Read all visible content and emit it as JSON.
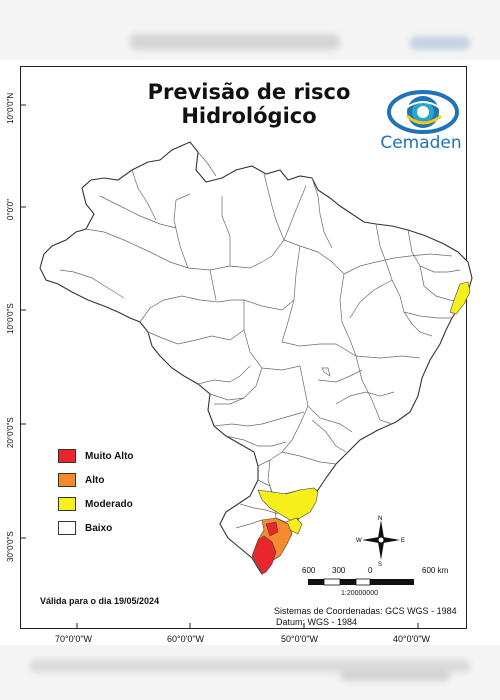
{
  "map": {
    "title_line1": "Previsão de risco",
    "title_line2": "Hidrológico",
    "logo_text": "Cemaden",
    "latitude_labels": [
      "10°0'0\"N",
      "0°0'0\"",
      "10°0'0\"S",
      "20°0'0\"S",
      "30°0'0\"S"
    ],
    "longitude_labels": [
      "70°0'0\"W",
      "60°0'0\"W",
      "50°0'0\"W",
      "40°0'0\"W"
    ],
    "legend": [
      {
        "label": "Muito Alto",
        "color": "#e8262b"
      },
      {
        "label": "Alto",
        "color": "#f58a2e"
      },
      {
        "label": "Moderado",
        "color": "#f7ef1c"
      },
      {
        "label": "Baixo",
        "color": "#ffffff"
      }
    ],
    "validity": "Válida para o dia 19/05/2024",
    "scale": {
      "ticks": [
        "600",
        "300",
        "0",
        "600 km"
      ],
      "ratio": "1:20000000"
    },
    "compass": {
      "n": "N",
      "s": "S",
      "e": "E",
      "w": "W"
    },
    "crs_line1": "Sistemas de Coordenadas: GCS WGS - 1984",
    "crs_line2": "Datum: WGS - 1984"
  },
  "colors": {
    "boundary": "#555555",
    "logo_blue": "#1f73b6",
    "logo_teal": "#26a8c6",
    "logo_yellow": "#f2c81a"
  }
}
